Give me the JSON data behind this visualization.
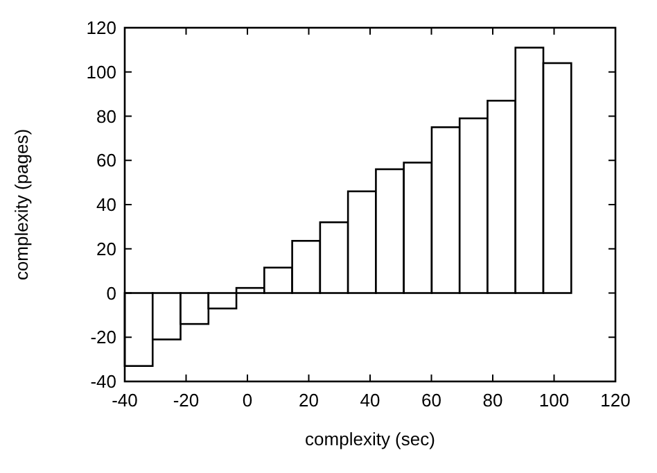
{
  "chart_data": {
    "type": "histogram",
    "xlabel": "complexity (sec)",
    "ylabel": "complexity (pages)",
    "bins": [
      -40,
      -30.9,
      -21.8,
      -12.7,
      -3.6,
      5.5,
      14.6,
      23.7,
      32.8,
      41.9,
      51,
      60.1,
      69.2,
      78.3,
      87.4,
      96.5,
      105.6
    ],
    "values": [
      -33,
      -21,
      -14,
      -7,
      2.3,
      11.5,
      23.6,
      32,
      46,
      56,
      59,
      75,
      79,
      87,
      111,
      104
    ],
    "color": "#ffffff",
    "xlim": [
      -40,
      120
    ],
    "xticks": [
      -40,
      -20,
      0,
      20,
      40,
      60,
      80,
      100,
      120
    ],
    "ylim": [
      -40,
      120
    ],
    "yticks": [
      -40,
      -20,
      0,
      20,
      40,
      60,
      80,
      100,
      120
    ],
    "grid": false
  }
}
